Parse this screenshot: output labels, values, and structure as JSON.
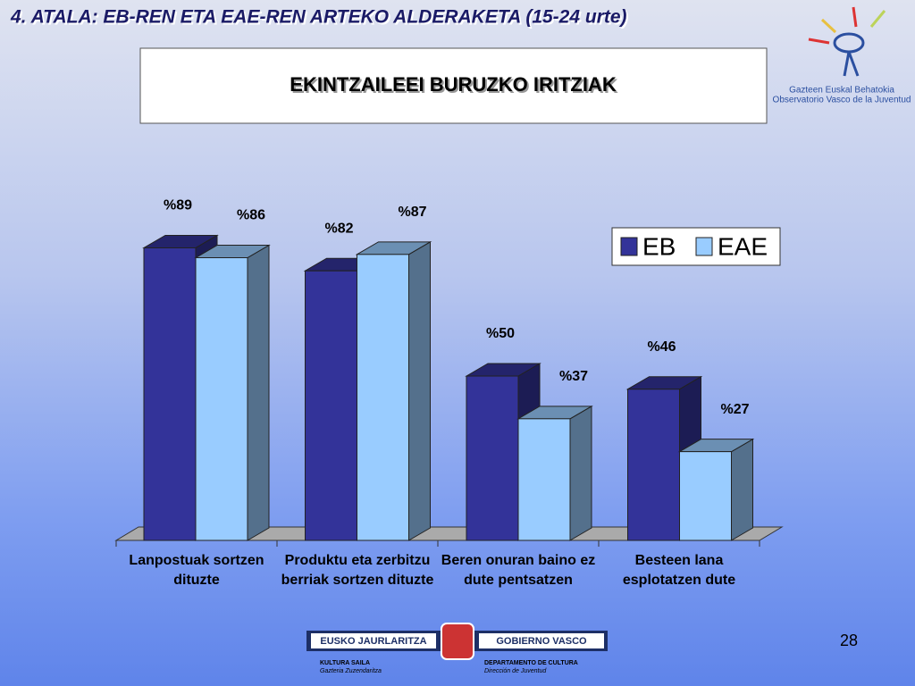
{
  "header": {
    "title": "4. ATALA: EB-REN ETA EAE-REN  ARTEKO ALDERAKETA (15-24 urte)"
  },
  "logo": {
    "line1": "Gazteen Euskal Behatokia",
    "line2": "Observatorio Vasco de la Juventud"
  },
  "chart_data": {
    "type": "bar3d",
    "title": "EKINTZAILEEI BURUZKO IRITZIAK",
    "categories": [
      "Lanpostuak sortzen dituzte",
      "Produktu eta zerbitzu berriak sortzen dituzte",
      "Beren onuran baino ez dute pentsatzen",
      "Besteen lana esplotatzen dute"
    ],
    "series": [
      {
        "name": "EB",
        "color": "#333399",
        "values": [
          89,
          82,
          50,
          46
        ],
        "value_labels": [
          "%89",
          "%82",
          "%50",
          "%46"
        ]
      },
      {
        "name": "EAE",
        "color": "#99ccff",
        "values": [
          86,
          87,
          37,
          27
        ],
        "value_labels": [
          "%86",
          "%87",
          "%37",
          "%27"
        ]
      }
    ],
    "legend": "right"
  },
  "footer": {
    "left_banner": "EUSKO JAURLARITZA",
    "right_banner": "GOBIERNO VASCO",
    "left_line1": "KULTURA SAILA",
    "left_line2": "Gazteria Zuzendaritza",
    "right_line1": "DEPARTAMENTO DE CULTURA",
    "right_line2": "Dirección de Juventud",
    "page_number": "28"
  }
}
